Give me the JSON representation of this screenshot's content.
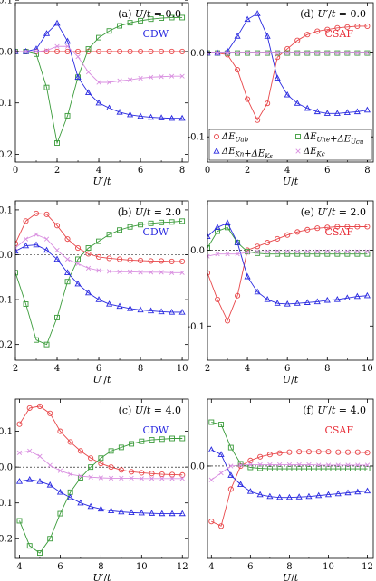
{
  "colors": {
    "red": "#e8474a",
    "green": "#3a9b3a",
    "blue": "#2a2ae0",
    "violet": "#d98fe0",
    "text_red": "#e8303a",
    "text_blue": "#2a2ae0"
  },
  "legend": {
    "entries": [
      {
        "label": "ΔE_Uab",
        "marker": "circle",
        "color_key": "red"
      },
      {
        "label": "ΔE_Uhe + ΔE_Ucu",
        "marker": "square",
        "color_key": "green"
      },
      {
        "label": "ΔE_Kn + ΔE_Ks",
        "marker": "triangle",
        "color_key": "blue"
      },
      {
        "label": "ΔE_Kc",
        "marker": "cross",
        "color_key": "violet"
      }
    ]
  },
  "chart_data": [
    {
      "id": "a",
      "type": "line",
      "title": "(a) U/t = 0.0",
      "tag": "CDW",
      "tag_color": "blue",
      "xlabel": "U′/t",
      "ylabel": "",
      "xlim": [
        0,
        8.3
      ],
      "ylim": [
        -0.215,
        0.095
      ],
      "xticks": [
        0,
        2,
        4,
        6,
        8
      ],
      "yticks": [
        -0.2,
        -0.1,
        0.0,
        0.1
      ],
      "ytick_labels": [
        "-0.2",
        "-0.1",
        "0.0",
        "0.1"
      ],
      "show_yticks": true,
      "x": [
        0,
        0.5,
        1,
        1.5,
        2,
        2.5,
        3,
        3.5,
        4,
        4.5,
        5,
        5.5,
        6,
        6.5,
        7,
        7.5,
        8
      ],
      "series": [
        {
          "key": "red",
          "marker": "circle",
          "values": [
            0,
            0,
            0,
            0,
            0,
            0,
            0,
            0,
            0,
            0,
            0,
            0,
            0,
            0,
            0,
            0,
            0
          ]
        },
        {
          "key": "green",
          "marker": "square",
          "values": [
            0,
            0,
            -0.005,
            -0.07,
            -0.178,
            -0.125,
            -0.05,
            0.005,
            0.027,
            0.04,
            0.05,
            0.056,
            0.06,
            0.063,
            0.065,
            0.066,
            0.066
          ]
        },
        {
          "key": "blue",
          "marker": "triangle",
          "values": [
            0,
            0,
            0.005,
            0.035,
            0.055,
            0.02,
            -0.05,
            -0.08,
            -0.1,
            -0.11,
            -0.118,
            -0.123,
            -0.126,
            -0.128,
            -0.129,
            -0.13,
            -0.13
          ]
        },
        {
          "key": "violet",
          "marker": "cross",
          "values": [
            0,
            0,
            0,
            0.002,
            0.01,
            0.01,
            -0.01,
            -0.04,
            -0.06,
            -0.06,
            -0.057,
            -0.055,
            -0.052,
            -0.05,
            -0.049,
            -0.048,
            -0.048
          ]
        }
      ]
    },
    {
      "id": "d",
      "type": "line",
      "title": "(d) U′/t = 0.0",
      "tag": "CSAF",
      "tag_color": "red",
      "xlabel": "U/t",
      "ylabel": "",
      "xlim": [
        0,
        8.3
      ],
      "ylim": [
        -0.13,
        0.06
      ],
      "xticks": [
        0,
        2,
        4,
        6,
        8
      ],
      "yticks": [
        -0.1,
        0.0
      ],
      "ytick_labels": [
        "-0.1",
        "0.0"
      ],
      "show_yticks": true,
      "x": [
        0,
        0.5,
        1,
        1.5,
        2,
        2.5,
        3,
        3.5,
        4,
        4.5,
        5,
        5.5,
        6,
        6.5,
        7,
        7.5,
        8
      ],
      "series": [
        {
          "key": "red",
          "marker": "circle",
          "values": [
            0,
            0,
            -0.002,
            -0.02,
            -0.055,
            -0.08,
            -0.06,
            -0.005,
            0.005,
            0.015,
            0.022,
            0.026,
            0.028,
            0.03,
            0.031,
            0.032,
            0.032
          ]
        },
        {
          "key": "green",
          "marker": "square",
          "values": [
            0,
            0,
            0,
            0,
            0,
            0,
            0,
            0,
            0,
            0,
            0,
            0,
            0,
            0,
            0,
            0,
            0
          ]
        },
        {
          "key": "blue",
          "marker": "triangle",
          "values": [
            0,
            0,
            0.002,
            0.02,
            0.04,
            0.047,
            0.02,
            -0.03,
            -0.05,
            -0.06,
            -0.066,
            -0.07,
            -0.072,
            -0.072,
            -0.071,
            -0.07,
            -0.068
          ]
        },
        {
          "key": "violet",
          "marker": "cross",
          "values": [
            0,
            0,
            0,
            0,
            0,
            0,
            0,
            0,
            0,
            0,
            0,
            0,
            0,
            0,
            0,
            0,
            0
          ]
        }
      ]
    },
    {
      "id": "b",
      "type": "line",
      "title": "(b) U/t = 2.0",
      "tag": "CDW",
      "tag_color": "blue",
      "xlabel": "U′/t",
      "ylabel": "",
      "xlim": [
        2,
        10.3
      ],
      "ylim": [
        -0.235,
        0.12
      ],
      "xticks": [
        2,
        4,
        6,
        8,
        10
      ],
      "yticks": [
        -0.2,
        -0.1,
        0.0,
        0.1
      ],
      "ytick_labels": [
        "-0.2",
        "-0.1",
        "0.0",
        "0.1"
      ],
      "show_yticks": true,
      "x": [
        2,
        2.5,
        3,
        3.5,
        4,
        4.5,
        5,
        5.5,
        6,
        6.5,
        7,
        7.5,
        8,
        8.5,
        9,
        9.5,
        10
      ],
      "series": [
        {
          "key": "red",
          "marker": "circle",
          "values": [
            0.025,
            0.075,
            0.092,
            0.09,
            0.065,
            0.035,
            0.015,
            0.002,
            -0.005,
            -0.008,
            -0.01,
            -0.012,
            -0.013,
            -0.014,
            -0.014,
            -0.015,
            -0.015
          ]
        },
        {
          "key": "green",
          "marker": "square",
          "values": [
            -0.04,
            -0.11,
            -0.19,
            -0.2,
            -0.14,
            -0.06,
            -0.01,
            0.015,
            0.03,
            0.045,
            0.055,
            0.062,
            0.067,
            0.07,
            0.072,
            0.073,
            0.075
          ]
        },
        {
          "key": "blue",
          "marker": "triangle",
          "values": [
            0.008,
            0.02,
            0.022,
            0.01,
            -0.01,
            -0.04,
            -0.065,
            -0.085,
            -0.1,
            -0.11,
            -0.115,
            -0.12,
            -0.123,
            -0.125,
            -0.127,
            -0.128,
            -0.128
          ]
        },
        {
          "key": "violet",
          "marker": "cross",
          "values": [
            0.015,
            0.035,
            0.045,
            0.035,
            0.01,
            -0.01,
            -0.02,
            -0.03,
            -0.035,
            -0.037,
            -0.038,
            -0.038,
            -0.039,
            -0.039,
            -0.039,
            -0.04,
            -0.04
          ]
        }
      ]
    },
    {
      "id": "e",
      "type": "line",
      "title": "(e) U′/t = 2.0",
      "tag": "CSAF",
      "tag_color": "red",
      "xlabel": "U/t",
      "ylabel": "",
      "xlim": [
        2,
        10.3
      ],
      "ylim": [
        -0.145,
        0.065
      ],
      "xticks": [
        2,
        4,
        6,
        8,
        10
      ],
      "yticks": [
        -0.1,
        0.0
      ],
      "ytick_labels": [
        "-0.1",
        "0.0"
      ],
      "show_yticks": true,
      "x": [
        2,
        2.5,
        3,
        3.5,
        4,
        4.5,
        5,
        5.5,
        6,
        6.5,
        7,
        7.5,
        8,
        8.5,
        9,
        9.5,
        10
      ],
      "series": [
        {
          "key": "red",
          "marker": "circle",
          "values": [
            -0.03,
            -0.065,
            -0.093,
            -0.06,
            0,
            0.005,
            0.01,
            0.015,
            0.02,
            0.024,
            0.027,
            0.029,
            0.03,
            0.031,
            0.031,
            0.031,
            0.031
          ]
        },
        {
          "key": "green",
          "marker": "square",
          "values": [
            0.003,
            0.025,
            0.03,
            0.01,
            -0.002,
            -0.004,
            -0.005,
            -0.005,
            -0.005,
            -0.005,
            -0.005,
            -0.005,
            -0.005,
            -0.005,
            -0.005,
            -0.005,
            -0.005
          ]
        },
        {
          "key": "blue",
          "marker": "triangle",
          "values": [
            0.018,
            0.03,
            0.036,
            0.01,
            -0.035,
            -0.055,
            -0.065,
            -0.07,
            -0.071,
            -0.07,
            -0.069,
            -0.068,
            -0.066,
            -0.065,
            -0.063,
            -0.061,
            -0.06
          ]
        },
        {
          "key": "violet",
          "marker": "cross",
          "values": [
            -0.008,
            -0.005,
            -0.005,
            -0.005,
            -0.003,
            -0.002,
            -0.002,
            -0.002,
            -0.002,
            -0.002,
            -0.002,
            -0.002,
            -0.002,
            -0.002,
            -0.002,
            -0.002,
            -0.002
          ]
        }
      ]
    },
    {
      "id": "c",
      "type": "line",
      "title": "(c) U/t = 4.0",
      "tag": "CDW",
      "tag_color": "blue",
      "xlabel": "U′/t",
      "ylabel": "",
      "xlim": [
        3.8,
        12.3
      ],
      "ylim": [
        -0.255,
        0.19
      ],
      "xticks": [
        4,
        6,
        8,
        10,
        12
      ],
      "yticks": [
        -0.2,
        -0.1,
        0.0,
        0.1
      ],
      "ytick_labels": [
        "-0.2",
        "-0.1",
        "0.0",
        "0.1"
      ],
      "show_yticks": true,
      "x": [
        4,
        4.5,
        5,
        5.5,
        6,
        6.5,
        7,
        7.5,
        8,
        8.5,
        9,
        9.5,
        10,
        10.5,
        11,
        11.5,
        12
      ],
      "series": [
        {
          "key": "red",
          "marker": "circle",
          "values": [
            0.12,
            0.165,
            0.17,
            0.15,
            0.1,
            0.07,
            0.045,
            0.025,
            0.01,
            0,
            -0.008,
            -0.013,
            -0.016,
            -0.018,
            -0.02,
            -0.021,
            -0.022
          ]
        },
        {
          "key": "green",
          "marker": "square",
          "values": [
            -0.15,
            -0.22,
            -0.24,
            -0.2,
            -0.13,
            -0.07,
            -0.03,
            0,
            0.025,
            0.045,
            0.055,
            0.065,
            0.072,
            0.076,
            0.078,
            0.08,
            0.08
          ]
        },
        {
          "key": "blue",
          "marker": "triangle",
          "values": [
            -0.04,
            -0.035,
            -0.04,
            -0.05,
            -0.07,
            -0.085,
            -0.1,
            -0.11,
            -0.117,
            -0.122,
            -0.125,
            -0.127,
            -0.128,
            -0.129,
            -0.13,
            -0.13,
            -0.13
          ]
        },
        {
          "key": "violet",
          "marker": "cross",
          "values": [
            0.04,
            0.045,
            0.03,
            0.005,
            -0.01,
            -0.02,
            -0.025,
            -0.028,
            -0.03,
            -0.031,
            -0.031,
            -0.031,
            -0.032,
            -0.032,
            -0.032,
            -0.032,
            -0.032
          ]
        }
      ]
    },
    {
      "id": "f",
      "type": "line",
      "title": "(f) U′/t = 4.0",
      "tag": "CSAF",
      "tag_color": "red",
      "xlabel": "U/t",
      "ylabel": "",
      "xlim": [
        3.8,
        12.3
      ],
      "ylim": [
        -0.2,
        0.145
      ],
      "xticks": [
        4,
        6,
        8,
        10,
        12
      ],
      "yticks": [
        0.0
      ],
      "ytick_labels": [
        "0.0"
      ],
      "show_yticks": true,
      "x": [
        4,
        4.5,
        5,
        5.5,
        6,
        6.5,
        7,
        7.5,
        8,
        8.5,
        9,
        9.5,
        10,
        10.5,
        11,
        11.5,
        12
      ],
      "series": [
        {
          "key": "red",
          "marker": "circle",
          "values": [
            -0.12,
            -0.13,
            -0.05,
            0,
            0.012,
            0.02,
            0.025,
            0.028,
            0.03,
            0.031,
            0.031,
            0.031,
            0.031,
            0.03,
            0.03,
            0.03,
            0.029
          ]
        },
        {
          "key": "green",
          "marker": "square",
          "values": [
            0.095,
            0.09,
            0.04,
            0.005,
            -0.003,
            -0.005,
            -0.006,
            -0.006,
            -0.006,
            -0.006,
            -0.006,
            -0.006,
            -0.006,
            -0.006,
            -0.006,
            -0.006,
            -0.006
          ]
        },
        {
          "key": "blue",
          "marker": "triangle",
          "values": [
            0.035,
            0.025,
            -0.02,
            -0.04,
            -0.055,
            -0.062,
            -0.066,
            -0.068,
            -0.068,
            -0.067,
            -0.066,
            -0.064,
            -0.062,
            -0.06,
            -0.058,
            -0.056,
            -0.054
          ]
        },
        {
          "key": "violet",
          "marker": "cross",
          "values": [
            -0.03,
            -0.015,
            0,
            0.002,
            0.003,
            0.003,
            0.003,
            0.003,
            0.003,
            0.003,
            0.003,
            0.002,
            0.002,
            0.002,
            0.002,
            0.002,
            0.002
          ]
        }
      ]
    }
  ]
}
